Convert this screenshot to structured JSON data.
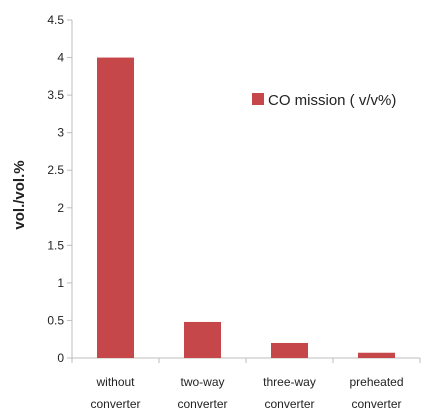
{
  "chart_data": {
    "type": "bar",
    "title": "",
    "xlabel": "",
    "ylabel": "vol./vol.%",
    "categories": [
      [
        "without",
        "converter"
      ],
      [
        "two-way",
        "converter"
      ],
      [
        "three-way",
        "converter"
      ],
      [
        "preheated",
        "converter"
      ]
    ],
    "series": [
      {
        "name": "CO   mission ( v/v%)",
        "values": [
          4.0,
          0.48,
          0.2,
          0.07
        ]
      }
    ],
    "ylim": [
      0,
      4.5
    ],
    "yticks": [
      "0",
      "0.5",
      "1",
      "1.5",
      "2",
      "2.5",
      "3",
      "3.5",
      "4",
      "4.5"
    ],
    "grid": false,
    "legend_position": "top-right",
    "colors": {
      "bar": "#c6474a",
      "axis": "#bdbdbd"
    }
  }
}
